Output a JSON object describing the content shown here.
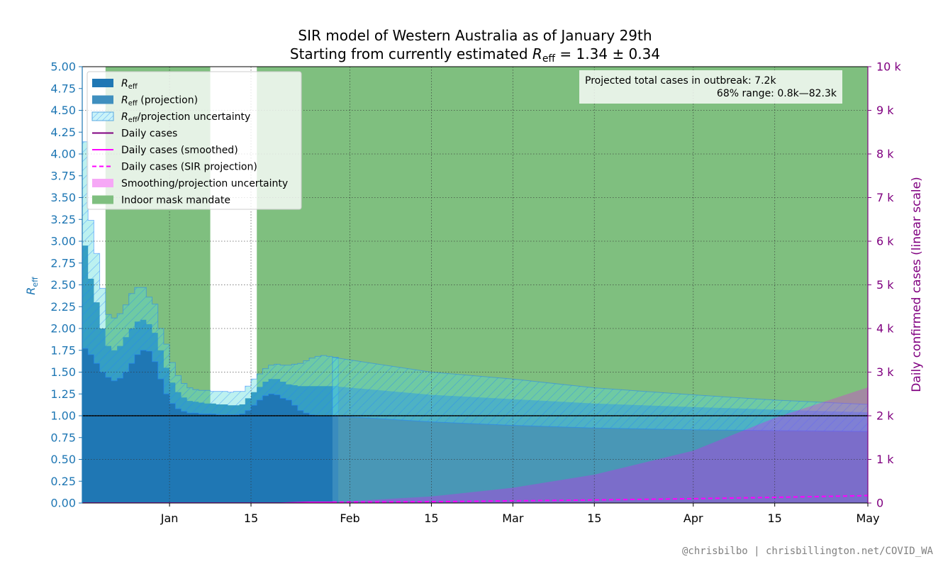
{
  "chart_data": {
    "type": "area",
    "title": "SIR model of Western Australia as of January 29th",
    "subtitle_prefix": "Starting from currently estimated ",
    "subtitle_math": "R",
    "subtitle_sub": "eff",
    "subtitle_suffix": " = 1.34 ± 0.34",
    "ylabel_left": "R",
    "ylabel_left_sub": "eff",
    "ylabel_right": "Daily confirmed cases (linear scale)",
    "x_start": "2021-12-17",
    "x_end": "2022-05-01",
    "ylim_left": [
      0,
      5
    ],
    "ylim_right": [
      0,
      10000
    ],
    "grid": true,
    "left_ticks": [
      "0.00",
      "0.25",
      "0.50",
      "0.75",
      "1.00",
      "1.25",
      "1.50",
      "1.75",
      "2.00",
      "2.25",
      "2.50",
      "2.75",
      "3.00",
      "3.25",
      "3.50",
      "3.75",
      "4.00",
      "4.25",
      "4.50",
      "4.75",
      "5.00"
    ],
    "right_ticks": [
      "0",
      "1 k",
      "2 k",
      "3 k",
      "4 k",
      "5 k",
      "6 k",
      "7 k",
      "8 k",
      "9 k",
      "10 k"
    ],
    "x_ticks": [
      {
        "date": "2022-01-01",
        "label": "Jan"
      },
      {
        "date": "2022-01-15",
        "label": "15"
      },
      {
        "date": "2022-02-01",
        "label": "Feb"
      },
      {
        "date": "2022-02-15",
        "label": "15"
      },
      {
        "date": "2022-03-01",
        "label": "Mar"
      },
      {
        "date": "2022-03-15",
        "label": "15"
      },
      {
        "date": "2022-04-01",
        "label": "Apr"
      },
      {
        "date": "2022-04-15",
        "label": "15"
      },
      {
        "date": "2022-05-01",
        "label": "May"
      }
    ],
    "mask_mandate_gaps": [
      {
        "start": "2021-12-17",
        "end": "2021-12-21"
      },
      {
        "start": "2022-01-08",
        "end": "2022-01-16"
      }
    ],
    "reff_estimate": {
      "dates": [
        "2021-12-17",
        "2021-12-18",
        "2021-12-19",
        "2021-12-20",
        "2021-12-21",
        "2021-12-22",
        "2021-12-23",
        "2021-12-24",
        "2021-12-25",
        "2021-12-26",
        "2021-12-27",
        "2021-12-28",
        "2021-12-29",
        "2021-12-30",
        "2021-12-31",
        "2022-01-01",
        "2022-01-02",
        "2022-01-03",
        "2022-01-04",
        "2022-01-05",
        "2022-01-06",
        "2022-01-07",
        "2022-01-08",
        "2022-01-09",
        "2022-01-10",
        "2022-01-11",
        "2022-01-12",
        "2022-01-13",
        "2022-01-14",
        "2022-01-15",
        "2022-01-16",
        "2022-01-17",
        "2022-01-18",
        "2022-01-19",
        "2022-01-20",
        "2022-01-21",
        "2022-01-22",
        "2022-01-23",
        "2022-01-24",
        "2022-01-25",
        "2022-01-26",
        "2022-01-27",
        "2022-01-28",
        "2022-01-29"
      ],
      "value": [
        2.95,
        2.57,
        2.3,
        2.0,
        1.8,
        1.75,
        1.8,
        1.9,
        2.0,
        2.08,
        2.1,
        2.05,
        1.95,
        1.75,
        1.55,
        1.38,
        1.27,
        1.21,
        1.17,
        1.16,
        1.15,
        1.14,
        1.14,
        1.13,
        1.13,
        1.12,
        1.12,
        1.13,
        1.2,
        1.27,
        1.33,
        1.39,
        1.42,
        1.42,
        1.39,
        1.36,
        1.35,
        1.34,
        1.34,
        1.34,
        1.34,
        1.34,
        1.34,
        1.34
      ],
      "lower": [
        1.77,
        1.7,
        1.6,
        1.5,
        1.44,
        1.4,
        1.43,
        1.5,
        1.6,
        1.7,
        1.75,
        1.74,
        1.62,
        1.42,
        1.25,
        1.14,
        1.08,
        1.05,
        1.03,
        1.03,
        1.02,
        1.02,
        1.02,
        1.01,
        1.01,
        1.01,
        1.01,
        1.02,
        1.06,
        1.12,
        1.18,
        1.23,
        1.25,
        1.24,
        1.2,
        1.18,
        1.12,
        1.06,
        1.03,
        1.01,
        1.0,
        1.0,
        1.0,
        1.0
      ],
      "upper": [
        4.14,
        3.24,
        2.86,
        2.46,
        2.16,
        2.12,
        2.17,
        2.27,
        2.4,
        2.47,
        2.47,
        2.36,
        2.28,
        2.0,
        1.82,
        1.61,
        1.46,
        1.37,
        1.32,
        1.3,
        1.29,
        1.29,
        1.28,
        1.28,
        1.28,
        1.27,
        1.28,
        1.28,
        1.34,
        1.42,
        1.48,
        1.54,
        1.58,
        1.59,
        1.58,
        1.58,
        1.59,
        1.6,
        1.63,
        1.66,
        1.68,
        1.69,
        1.68,
        1.67
      ]
    },
    "reff_projection": {
      "dates": [
        "2022-01-29",
        "2022-02-15",
        "2022-03-01",
        "2022-03-15",
        "2022-04-01",
        "2022-04-15",
        "2022-05-01"
      ],
      "value": [
        1.34,
        1.24,
        1.19,
        1.14,
        1.1,
        1.07,
        1.04
      ],
      "lower": [
        1.0,
        0.93,
        0.89,
        0.86,
        0.84,
        0.83,
        0.82
      ],
      "upper": [
        1.67,
        1.5,
        1.42,
        1.32,
        1.24,
        1.18,
        1.13
      ]
    },
    "daily_cases": {
      "dates": [
        "2021-12-17",
        "2022-01-20",
        "2022-01-25",
        "2022-01-29"
      ],
      "values": [
        0,
        0,
        20,
        20
      ]
    },
    "sir_projection": {
      "dates": [
        "2022-01-29",
        "2022-02-15",
        "2022-03-01",
        "2022-03-15",
        "2022-04-01",
        "2022-04-15",
        "2022-05-01"
      ],
      "median": [
        20,
        30,
        50,
        70,
        100,
        130,
        170
      ],
      "upper": [
        20,
        150,
        350,
        650,
        1200,
        1950,
        2650
      ]
    },
    "reference_line": 1.0,
    "legend": {
      "placement": "upper-left",
      "entries": [
        {
          "key": "reff",
          "label": "R",
          "sub": "eff",
          "suffix": ""
        },
        {
          "key": "reff_proj",
          "label": "R",
          "sub": "eff",
          "suffix": " (projection)"
        },
        {
          "key": "reff_unc",
          "label": "R",
          "sub": "eff",
          "suffix": "/projection uncertainty"
        },
        {
          "key": "daily",
          "label": "Daily cases",
          "sub": "",
          "suffix": ""
        },
        {
          "key": "smoothed",
          "label": "Daily cases (smoothed)",
          "sub": "",
          "suffix": ""
        },
        {
          "key": "sir",
          "label": "Daily cases (SIR projection)",
          "sub": "",
          "suffix": ""
        },
        {
          "key": "smooth_unc",
          "label": "Smoothing/projection uncertainty",
          "sub": "",
          "suffix": ""
        },
        {
          "key": "mask",
          "label": "Indoor mask mandate",
          "sub": "",
          "suffix": ""
        }
      ]
    },
    "annotation": {
      "placement": "top-right",
      "line1": "Projected total cases in outbreak:  7.2k",
      "line2": "68% range:  0.8k—82.3k"
    },
    "colors": {
      "reff": "#1f77b4",
      "reff_proj": "#3f8fbf",
      "uncertainty_fill": "#58dcda",
      "uncertainty_hatch": "#1f80ff",
      "mask": "#7fbf7f",
      "cases": "#800080",
      "smoothed": "#ff00ff",
      "sir_band": "#ff00ff",
      "left_axis": "#1f77b4",
      "right_axis": "#800080"
    }
  },
  "credit": "@chrisbilbo | chrisbillington.net/COVID_WA"
}
